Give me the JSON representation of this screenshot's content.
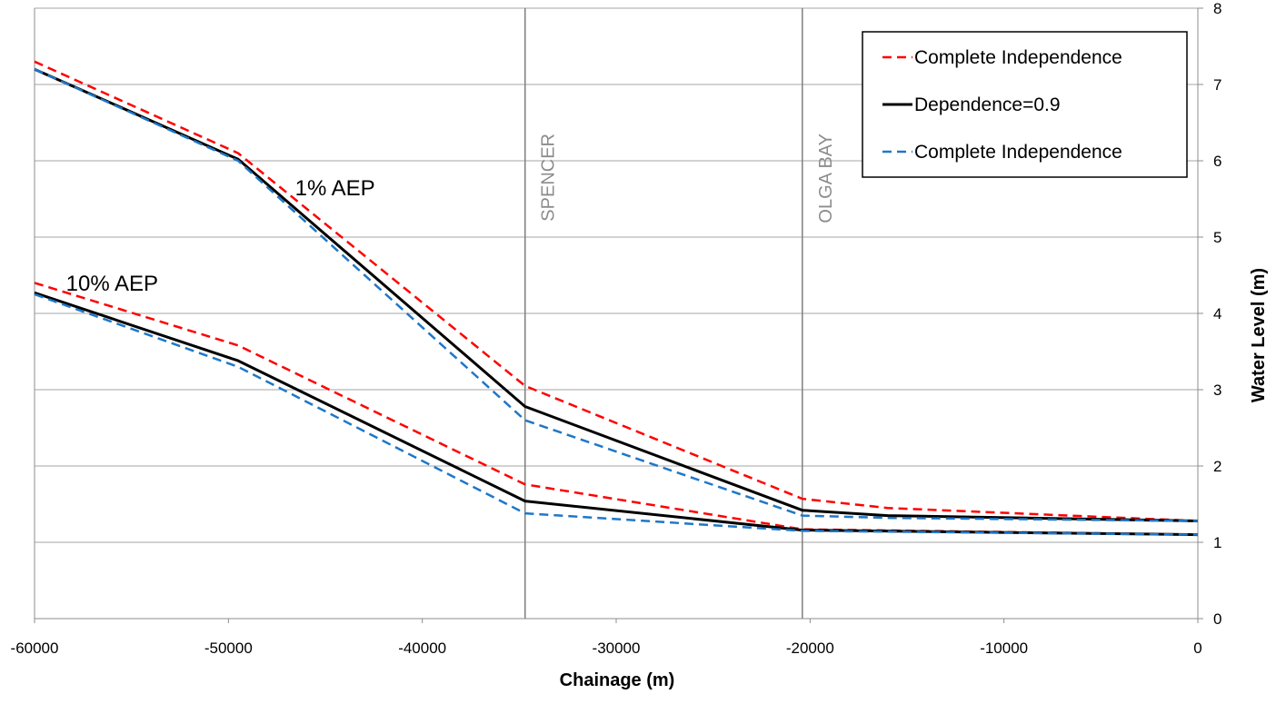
{
  "chart_data": {
    "type": "line",
    "xlabel": "Chainage (m)",
    "ylabel": "Water Level (m)",
    "xlim": [
      -60000,
      0
    ],
    "ylim": [
      0,
      8
    ],
    "x_ticks": [
      "-60000",
      "-50000",
      "-40000",
      "-30000",
      "-20000",
      "-10000",
      "0"
    ],
    "y_ticks": [
      "0",
      "1",
      "2",
      "3",
      "4",
      "5",
      "6",
      "7",
      "8"
    ],
    "grid": true,
    "y_axis_side": "right",
    "legend_position": "top-right",
    "vertical_markers": [
      {
        "label": "SPENCER",
        "x": -34700
      },
      {
        "label": "OLGA BAY",
        "x": -20400
      }
    ],
    "annotations": [
      {
        "text": "1% AEP",
        "x": -44500,
        "y": 5.55
      },
      {
        "text": "10% AEP",
        "x": -56000,
        "y": 4.3
      }
    ],
    "series": [
      {
        "name": "Complete Independence",
        "group": "1% AEP",
        "color": "#ff0000",
        "dash": true,
        "x": [
          -60000,
          -49500,
          -34700,
          -20400,
          -16000,
          0
        ],
        "y": [
          7.3,
          6.1,
          3.05,
          1.57,
          1.45,
          1.28
        ]
      },
      {
        "name": "Dependence=0.9",
        "group": "1% AEP",
        "color": "#000000",
        "dash": false,
        "x": [
          -60000,
          -49500,
          -34700,
          -20400,
          -16000,
          0
        ],
        "y": [
          7.2,
          6.02,
          2.78,
          1.42,
          1.35,
          1.28
        ]
      },
      {
        "name": "Complete Independence",
        "group": "1% AEP",
        "color": "#1f77c8",
        "dash": true,
        "x": [
          -60000,
          -49500,
          -34700,
          -20400,
          -16000,
          0
        ],
        "y": [
          7.2,
          6.0,
          2.6,
          1.35,
          1.32,
          1.28
        ]
      },
      {
        "group": "10% AEP",
        "color": "#ff0000",
        "dash": true,
        "x": [
          -60000,
          -49500,
          -34700,
          -20400,
          0
        ],
        "y": [
          4.4,
          3.58,
          1.76,
          1.17,
          1.1
        ]
      },
      {
        "group": "10% AEP",
        "color": "#000000",
        "dash": false,
        "x": [
          -60000,
          -49500,
          -34700,
          -20400,
          0
        ],
        "y": [
          4.27,
          3.38,
          1.54,
          1.16,
          1.1
        ]
      },
      {
        "group": "10% AEP",
        "color": "#1f77c8",
        "dash": true,
        "x": [
          -60000,
          -49500,
          -34700,
          -20400,
          0
        ],
        "y": [
          4.25,
          3.3,
          1.38,
          1.15,
          1.1
        ]
      }
    ],
    "legend": [
      {
        "label": "Complete Independence",
        "color": "#ff0000",
        "dash": true
      },
      {
        "label": "Dependence=0.9",
        "color": "#000000",
        "dash": false
      },
      {
        "label": "Complete Independence",
        "color": "#1f77c8",
        "dash": true
      }
    ]
  }
}
